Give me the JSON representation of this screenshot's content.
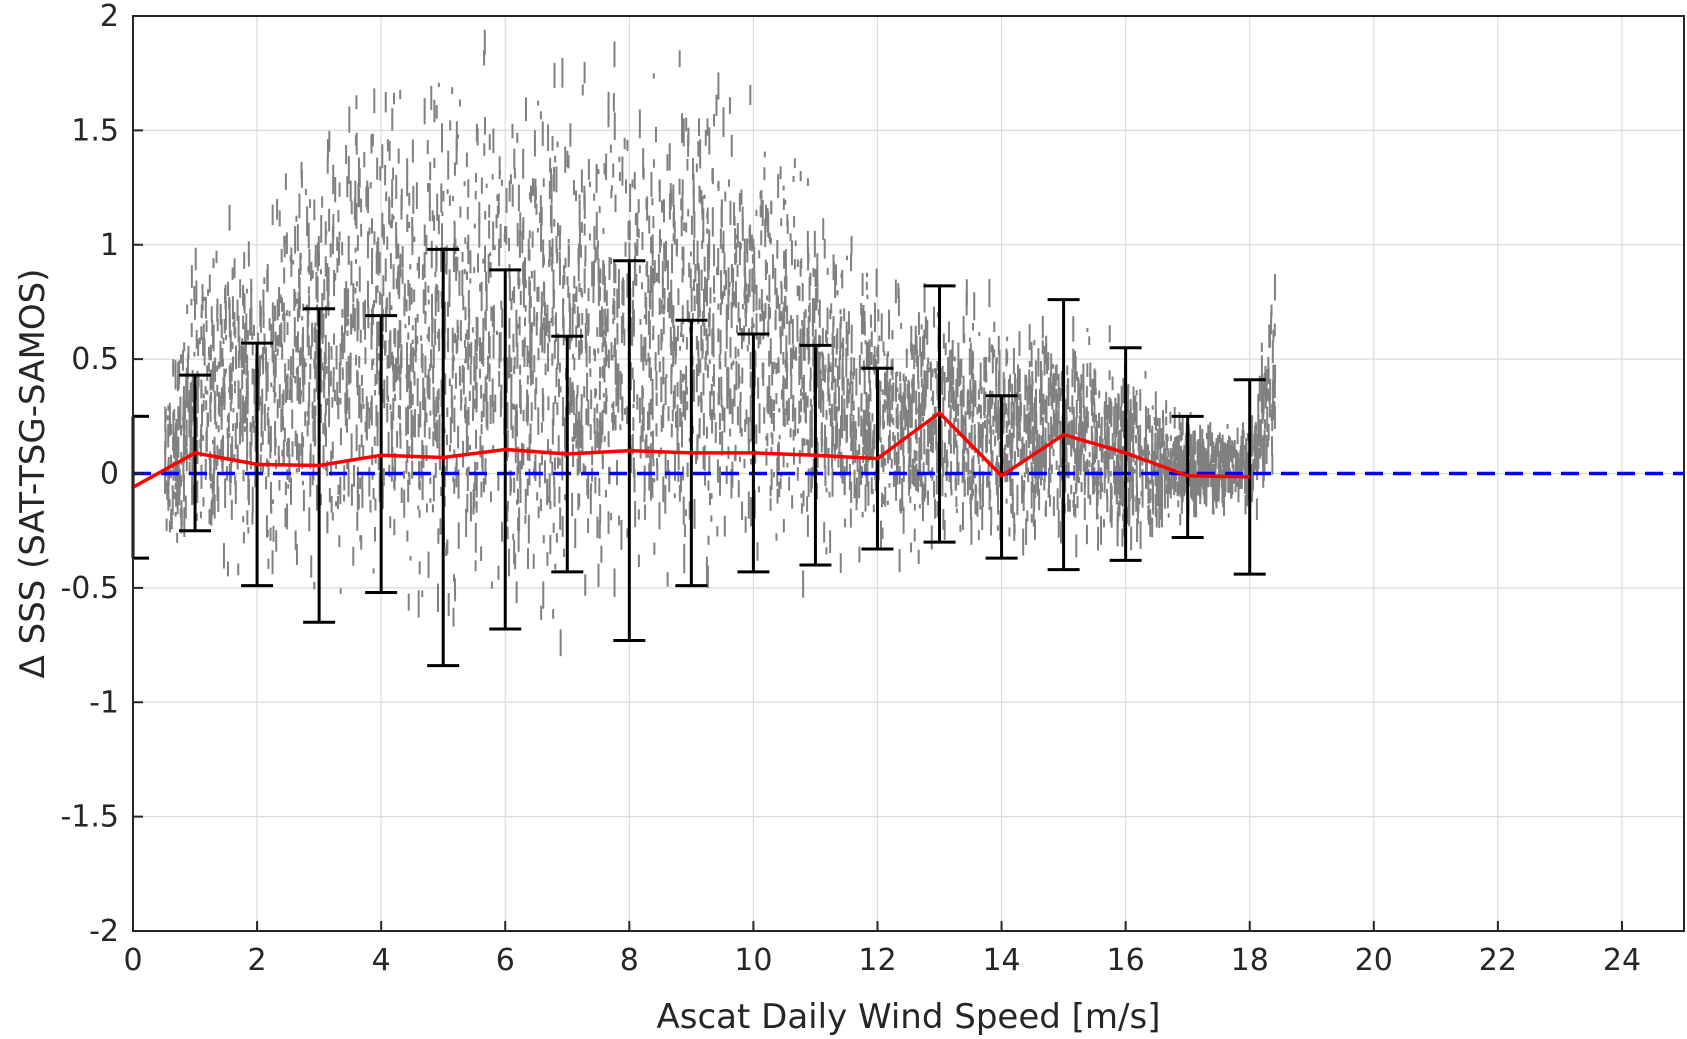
{
  "chart_data": {
    "type": "scatter",
    "title": "",
    "xlabel": "Ascat Daily Wind Speed [m/s]",
    "ylabel": "Δ SSS (SAT-TSG-SAMOS)",
    "xlim": [
      0,
      25
    ],
    "ylim": [
      -2,
      2
    ],
    "xticks": [
      0,
      2,
      4,
      6,
      8,
      10,
      12,
      14,
      16,
      18,
      20,
      22,
      24
    ],
    "xtick_labels": [
      "0",
      "2",
      "4",
      "6",
      "8",
      "10",
      "12",
      "14",
      "16",
      "18",
      "20",
      "22",
      "24"
    ],
    "yticks": [
      2,
      1.5,
      1,
      0.5,
      0,
      -0.5,
      -1,
      -1.5,
      -2
    ],
    "ytick_labels": [
      "2",
      "1.5",
      "1",
      "0.5",
      "0",
      "-0.5",
      "-1",
      "-1.5",
      "-2"
    ],
    "grid": true,
    "legend": "none",
    "colors": {
      "scatter": "#808080",
      "mean_line": "#ff0000",
      "zero_line": "#0000ff",
      "error_bars": "#000000"
    },
    "scatter_density": [
      {
        "x": 0.5,
        "lower": -0.35,
        "upper": 0.45
      },
      {
        "x": 1.0,
        "lower": -0.55,
        "upper": 1.1
      },
      {
        "x": 2.0,
        "lower": -0.6,
        "upper": 1.3
      },
      {
        "x": 3.0,
        "lower": -0.8,
        "upper": 1.8
      },
      {
        "x": 4.0,
        "lower": -0.85,
        "upper": 2.0
      },
      {
        "x": 5.0,
        "lower": -0.9,
        "upper": 2.0
      },
      {
        "x": 6.0,
        "lower": -0.9,
        "upper": 2.0
      },
      {
        "x": 7.0,
        "lower": -0.85,
        "upper": 2.0
      },
      {
        "x": 8.0,
        "lower": -0.75,
        "upper": 2.0
      },
      {
        "x": 9.0,
        "lower": -0.7,
        "upper": 2.0
      },
      {
        "x": 10.0,
        "lower": -0.6,
        "upper": 1.8
      },
      {
        "x": 11.0,
        "lower": -0.55,
        "upper": 1.4
      },
      {
        "x": 12.0,
        "lower": -0.5,
        "upper": 1.0
      },
      {
        "x": 13.0,
        "lower": -0.45,
        "upper": 0.9
      },
      {
        "x": 14.0,
        "lower": -0.45,
        "upper": 0.85
      },
      {
        "x": 15.0,
        "lower": -0.4,
        "upper": 0.75
      },
      {
        "x": 16.0,
        "lower": -0.45,
        "upper": 0.6
      },
      {
        "x": 17.0,
        "lower": -0.25,
        "upper": 0.3
      },
      {
        "x": 18.0,
        "lower": -0.2,
        "upper": 0.25
      },
      {
        "x": 18.4,
        "lower": -0.2,
        "upper": 1.1
      }
    ],
    "mean_line": {
      "x": [
        0,
        1,
        2,
        3,
        4,
        5,
        6,
        7,
        8,
        9,
        10,
        11,
        12,
        13,
        14,
        15,
        16,
        17,
        18
      ],
      "y": [
        -0.06,
        0.09,
        0.04,
        0.035,
        0.08,
        0.07,
        0.105,
        0.085,
        0.1,
        0.09,
        0.09,
        0.08,
        0.065,
        0.265,
        -0.01,
        0.17,
        0.09,
        -0.01,
        -0.015
      ]
    },
    "error_bars": [
      {
        "x": 0,
        "low": -0.37,
        "high": 0.25
      },
      {
        "x": 1,
        "low": -0.25,
        "high": 0.43
      },
      {
        "x": 2,
        "low": -0.49,
        "high": 0.57
      },
      {
        "x": 3,
        "low": -0.65,
        "high": 0.72
      },
      {
        "x": 4,
        "low": -0.52,
        "high": 0.69
      },
      {
        "x": 5,
        "low": -0.84,
        "high": 0.98
      },
      {
        "x": 6,
        "low": -0.68,
        "high": 0.89
      },
      {
        "x": 7,
        "low": -0.43,
        "high": 0.6
      },
      {
        "x": 8,
        "low": -0.73,
        "high": 0.93
      },
      {
        "x": 9,
        "low": -0.49,
        "high": 0.67
      },
      {
        "x": 10,
        "low": -0.43,
        "high": 0.61
      },
      {
        "x": 11,
        "low": -0.4,
        "high": 0.56
      },
      {
        "x": 12,
        "low": -0.33,
        "high": 0.46
      },
      {
        "x": 13,
        "low": -0.3,
        "high": 0.82
      },
      {
        "x": 14,
        "low": -0.37,
        "high": 0.34
      },
      {
        "x": 15,
        "low": -0.42,
        "high": 0.76
      },
      {
        "x": 16,
        "low": -0.38,
        "high": 0.55
      },
      {
        "x": 17,
        "low": -0.28,
        "high": 0.25
      },
      {
        "x": 18,
        "low": -0.44,
        "high": 0.41
      }
    ],
    "zero_line": {
      "y": 0,
      "style": "dashed"
    }
  }
}
